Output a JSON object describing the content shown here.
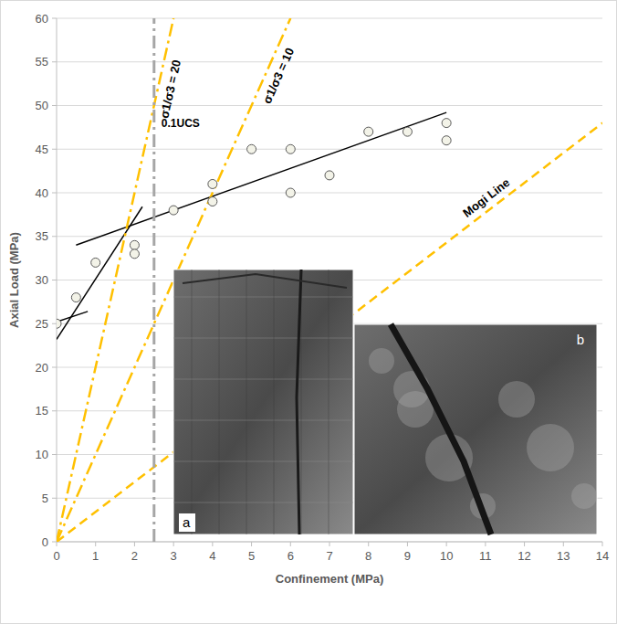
{
  "chart_data": {
    "type": "scatter",
    "x_label": "Confinement (MPa)",
    "y_label": "Axial Load (MPa)",
    "xlim": [
      0,
      14
    ],
    "ylim": [
      0,
      60
    ],
    "xticks": [
      0,
      1,
      2,
      3,
      4,
      5,
      6,
      7,
      8,
      9,
      10,
      11,
      12,
      13,
      14
    ],
    "yticks": [
      0,
      5,
      10,
      15,
      20,
      25,
      30,
      35,
      40,
      45,
      50,
      55,
      60
    ],
    "grid": true,
    "series": [
      {
        "type": "scatter",
        "marker": "circle",
        "color": "#595959",
        "x": [
          0,
          0.5,
          1,
          2,
          2,
          3,
          4,
          4,
          5,
          6,
          6,
          7,
          8,
          9,
          10,
          10
        ],
        "values": [
          25,
          28,
          32,
          34,
          33,
          38,
          41,
          39,
          45,
          45,
          40,
          42,
          47,
          47,
          48,
          46
        ]
      },
      {
        "type": "line",
        "line_style": "solid",
        "color": "#000000",
        "x": [
          0,
          2.2
        ],
        "values": [
          23.2,
          38.4
        ]
      },
      {
        "type": "line",
        "line_style": "solid",
        "color": "#000000",
        "x": [
          0,
          0.8
        ],
        "values": [
          25.2,
          26.4
        ]
      },
      {
        "type": "line",
        "line_style": "solid",
        "color": "#000000",
        "x": [
          0.5,
          10
        ],
        "values": [
          34,
          49.2
        ]
      },
      {
        "type": "line",
        "name": "σ1/σ3 = 20",
        "line_style": "dashdot",
        "color": "#ffc000",
        "x": [
          0,
          3
        ],
        "values": [
          0,
          60
        ]
      },
      {
        "type": "line",
        "name": "σ1/σ3 = 10",
        "line_style": "dashdot",
        "color": "#ffc000",
        "x": [
          0,
          6
        ],
        "values": [
          0,
          60
        ]
      },
      {
        "type": "line",
        "name": "Mogi Line",
        "line_style": "dashed",
        "color": "#ffc000",
        "x": [
          0,
          14
        ],
        "values": [
          0,
          48
        ]
      },
      {
        "type": "line",
        "name": "0.1UCS",
        "line_style": "dashdot",
        "color": "#a6a6a6",
        "x": [
          2.5,
          2.5
        ],
        "values": [
          0,
          60
        ]
      }
    ],
    "images": [
      {
        "label": "a"
      },
      {
        "label": "b"
      }
    ]
  }
}
